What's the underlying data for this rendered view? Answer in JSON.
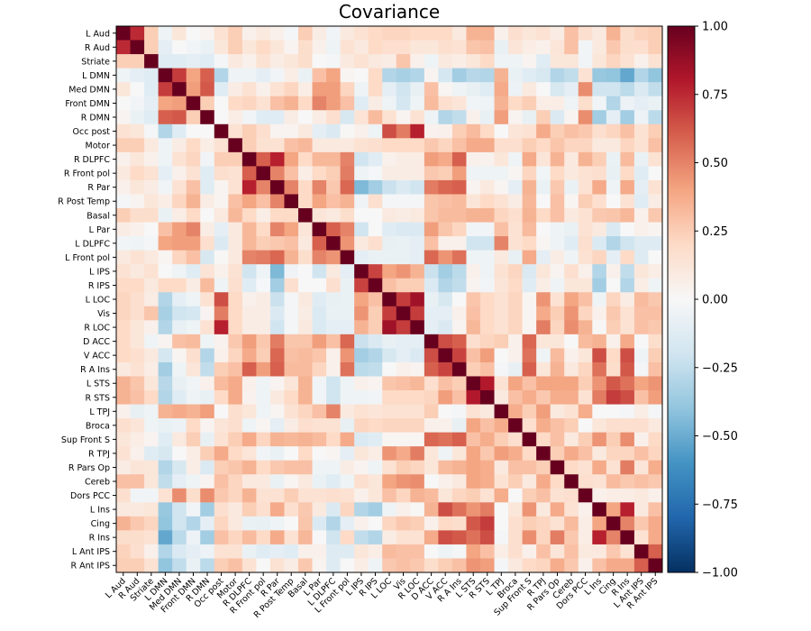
{
  "chart_data": {
    "type": "heatmap",
    "title": "Covariance",
    "colormap": "RdBu_r",
    "color_range": [
      -1.0,
      1.0
    ],
    "colorbar_ticks": [
      "1.00",
      "0.75",
      "0.50",
      "0.25",
      "0.00",
      "−0.25",
      "−0.50",
      "−0.75",
      "−1.00"
    ],
    "colorbar_tick_values": [
      1.0,
      0.75,
      0.5,
      0.25,
      0.0,
      -0.25,
      -0.5,
      -0.75,
      -1.0
    ],
    "labels": [
      "L Aud",
      "R Aud",
      "Striate",
      "L DMN",
      "Med DMN",
      "Front DMN",
      "R DMN",
      "Occ post",
      "Motor",
      "R DLPFC",
      "R Front pol",
      "R Par",
      "R Post Temp",
      "Basal",
      "L Par",
      "L DLPFC",
      "L Front pol",
      "L IPS",
      "R IPS",
      "L LOC",
      "Vis",
      "R LOC",
      "D ACC",
      "V ACC",
      "R A Ins",
      "L STS",
      "R STS",
      "L TPJ",
      "Broca",
      "Sup Front S",
      "R TPJ",
      "R Pars Op",
      "Cereb",
      "Dors PCC",
      "L Ins",
      "Cing",
      "R Ins",
      "L Ant IPS",
      "R Ant IPS"
    ],
    "symmetric": true,
    "values_upper_triangle": [
      [
        1,
        0.75,
        0.25,
        -0.05,
        0.12,
        0,
        0.03,
        0.15,
        0.25,
        0.05,
        0.1,
        0.05,
        -0.02,
        0.25,
        0.08,
        -0.03,
        0.1,
        0.15,
        0.2,
        0.22,
        0.22,
        0.2,
        0.2,
        0.2,
        0.1,
        0.35,
        0.35,
        0.05,
        0.17,
        0.12,
        0.15,
        0.08,
        0.3,
        0.17,
        0.1,
        0.35,
        0.18,
        0.23,
        0.25
      ],
      [
        1,
        0.25,
        -0.1,
        0,
        -0.03,
        -0.07,
        0.12,
        0.25,
        0.12,
        0.2,
        0.12,
        0.03,
        0.18,
        0.05,
        -0.05,
        0.15,
        0.1,
        0.2,
        0.17,
        0.17,
        0.12,
        0.12,
        0.17,
        0.15,
        0.28,
        0.3,
        -0.08,
        0.13,
        0.07,
        0.05,
        0.13,
        0.3,
        -0.03,
        0.1,
        0.27,
        0.18,
        0.17,
        0.25
      ],
      [
        1,
        -0.12,
        -0.12,
        -0.1,
        -0.12,
        -0.02,
        0.1,
        0.05,
        0.15,
        0.08,
        0.12,
        0.18,
        0,
        -0.02,
        0.1,
        0.15,
        0.1,
        0.08,
        0.28,
        0.05,
        -0.05,
        0.1,
        0.07,
        0.12,
        0.2,
        -0.05,
        -0.05,
        0.03,
        -0.12,
        0.12,
        0.12,
        -0.03,
        0.12,
        0.22,
        0.15,
        0.05,
        0.15
      ],
      [
        1,
        0.7,
        0.4,
        0.6,
        -0.3,
        -0.05,
        -0.05,
        -0.1,
        -0.03,
        0.07,
        -0.07,
        0.3,
        0.4,
        0.02,
        0,
        0.2,
        -0.3,
        -0.33,
        -0.3,
        0.03,
        -0.18,
        -0.35,
        -0.28,
        -0.3,
        0.35,
        -0.07,
        -0.12,
        -0.17,
        -0.3,
        -0.25,
        0.15,
        -0.38,
        -0.4,
        -0.52,
        -0.3,
        -0.4
      ],
      [
        1,
        0.42,
        0.62,
        -0.12,
        0.08,
        0.15,
        0.05,
        0.15,
        0.22,
        0.07,
        0.42,
        0.42,
        0.22,
        -0.05,
        0.2,
        -0.1,
        -0.2,
        -0.08,
        0.3,
        0.02,
        -0.05,
        -0.08,
        -0.12,
        0.38,
        -0.06,
        0.1,
        0,
        -0.17,
        -0.1,
        0.47,
        -0.2,
        -0.2,
        -0.27,
        -0.15,
        -0.25
      ],
      [
        1,
        0.25,
        0,
        0.2,
        0.22,
        0.15,
        0.3,
        0.35,
        0.2,
        0.5,
        0.42,
        0.3,
        -0.12,
        0.08,
        -0.05,
        -0.18,
        -0.05,
        0.32,
        0.17,
        0.13,
        -0.03,
        -0.05,
        0.35,
        0.2,
        0.25,
        0.07,
        0.07,
        -0.05,
        0.18,
        -0.03,
        -0.3,
        -0.06,
        -0.1,
        -0.07
      ],
      [
        1,
        0,
        0.07,
        -0.03,
        -0.12,
        -0.12,
        0.08,
        0,
        0.08,
        0.17,
        -0.17,
        0.14,
        0.32,
        0.15,
        0.03,
        0.15,
        -0.05,
        -0.3,
        -0.25,
        0.05,
        -0.08,
        0.42,
        0.03,
        -0.08,
        0.25,
        -0.15,
        0.03,
        0.47,
        -0.35,
        -0.1,
        -0.35,
        -0.06,
        -0.27
      ],
      [
        1,
        0.15,
        0.25,
        0.17,
        0.03,
        0.03,
        0.1,
        -0.1,
        -0.15,
        0.01,
        0.05,
        -0.05,
        0.65,
        0.52,
        0.78,
        0.04,
        0.05,
        0.25,
        0.32,
        0.2,
        0,
        0.13,
        0.15,
        0.38,
        0.25,
        0.3,
        0.27,
        0.17,
        0.22,
        0.3,
        0.15,
        0.25
      ],
      [
        1,
        0.25,
        0.15,
        0.15,
        0.3,
        0.33,
        0.1,
        0.1,
        0.1,
        0.15,
        0.17,
        0.2,
        0.2,
        0.2,
        0.27,
        0.22,
        0.3,
        0.38,
        0.38,
        0.17,
        0.17,
        0.25,
        0.2,
        0.28,
        0.22,
        0.22,
        0.1,
        0.1,
        0.22,
        0.15,
        0.3
      ],
      [
        1,
        0.6,
        0.78,
        0.4,
        0.2,
        0.33,
        0.33,
        0.5,
        -0.2,
        -0.12,
        0.05,
        0.08,
        0.08,
        0.42,
        0.38,
        0.6,
        0.05,
        0.04,
        0.12,
        -0.05,
        0.38,
        0.13,
        0.35,
        0.1,
        0.35,
        0.25,
        -0.07,
        0.32,
        -0.07,
        0.15
      ],
      [
        1,
        0.5,
        0.3,
        0.07,
        0.2,
        0.25,
        0.52,
        -0.05,
        -0.01,
        0.08,
        0.08,
        0.08,
        0.27,
        0.25,
        0.42,
        -0.05,
        -0.05,
        -0.05,
        0.02,
        0.22,
        -0.03,
        0.2,
        0.1,
        0.15,
        0.17,
        -0.08,
        0.2,
        -0.12,
        0
      ],
      [
        1,
        0.5,
        0.2,
        0.5,
        0.27,
        0.58,
        -0.45,
        -0.35,
        -0.22,
        -0.15,
        -0.2,
        0.52,
        0.58,
        0.6,
        0.03,
        0.1,
        0.02,
        -0.1,
        0.35,
        -0.07,
        0.27,
        -0.07,
        0.15,
        0.38,
        -0.05,
        0.38,
        -0.1,
        0.15
      ],
      [
        1,
        0.2,
        0.4,
        0.3,
        0.35,
        -0.04,
        0.17,
        -0.02,
        -0.02,
        -0.02,
        0.28,
        0.3,
        0.32,
        0.13,
        0.2,
        0.15,
        0.08,
        0.33,
        0,
        0.3,
        0.02,
        0.25,
        0.17,
        0,
        0.15,
        -0.12,
        0.08
      ],
      [
        1,
        0.13,
        0.1,
        0.18,
        0,
        0,
        0.1,
        0.08,
        0.1,
        0.28,
        0.32,
        0.32,
        0.35,
        0.35,
        0.22,
        0.17,
        0.35,
        0.2,
        0.3,
        0.1,
        0.15,
        0.27,
        0.28,
        0.33,
        0.05,
        0.27
      ],
      [
        1,
        0.6,
        0.5,
        -0.2,
        0,
        -0.12,
        -0.15,
        -0.15,
        0.42,
        0.28,
        0.22,
        -0.03,
        -0.03,
        0.3,
        0.15,
        0.32,
        0,
        -0.05,
        -0.07,
        0.15,
        0.1,
        -0.15,
        0,
        0.05,
        0.03
      ],
      [
        1,
        0.45,
        0.1,
        0.17,
        -0.08,
        -0.07,
        -0.1,
        0.3,
        0.05,
        0.05,
        -0.2,
        -0.2,
        0.5,
        0.15,
        0.2,
        0.02,
        -0.05,
        -0.12,
        0.17,
        -0.15,
        -0.3,
        -0.2,
        -0.13,
        -0.13
      ],
      [
        1,
        -0.1,
        -0.07,
        -0.07,
        -0.07,
        -0.1,
        0.58,
        0.45,
        0.55,
        -0.05,
        -0.05,
        0.1,
        -0.08,
        0.38,
        -0.1,
        0.08,
        -0.05,
        0.15,
        0.22,
        -0.1,
        0.2,
        -0.13,
        0
      ],
      [
        1,
        0.68,
        0.4,
        0.45,
        0.35,
        -0.22,
        -0.35,
        -0.27,
        0.05,
        -0.05,
        0.15,
        0.22,
        -0.15,
        0.12,
        0.03,
        0.17,
        0.05,
        -0.3,
        0.05,
        -0.25,
        0.12,
        0.07
      ],
      [
        1,
        0.3,
        0.25,
        0.25,
        -0.15,
        -0.3,
        -0.25,
        0.03,
        -0.03,
        0.13,
        0.2,
        -0.12,
        0.07,
        -0.05,
        0.12,
        0.12,
        -0.35,
        0,
        -0.3,
        0.07,
        -0.05
      ],
      [
        1,
        0.7,
        0.85,
        -0.08,
        -0.17,
        0,
        0.28,
        0.2,
        0.15,
        0.22,
        0.02,
        0.45,
        0.15,
        0.4,
        0.3,
        -0.05,
        0.22,
        0.08,
        0.32,
        0.27
      ],
      [
        1,
        0.7,
        -0.1,
        -0.1,
        0.05,
        0.3,
        0.2,
        0.15,
        0.22,
        0.02,
        0.38,
        0.25,
        0.45,
        0.22,
        0.05,
        0.27,
        0.15,
        0.3,
        0.3
      ],
      [
        1,
        -0.1,
        -0.15,
        0.03,
        0.33,
        0.2,
        0.15,
        0.22,
        0.02,
        0.52,
        0.22,
        0.47,
        0.35,
        0.01,
        0.25,
        0.15,
        0.3,
        0.27
      ],
      [
        1,
        0.65,
        0.6,
        0.17,
        0.22,
        0.25,
        0.05,
        0.58,
        0.12,
        0.12,
        0,
        0.32,
        0.35,
        0.05,
        0.38,
        0,
        0.18
      ],
      [
        1,
        0.68,
        0.3,
        0.42,
        0,
        0.05,
        0.55,
        -0.05,
        0.32,
        0.05,
        0.12,
        0.65,
        0.2,
        0.65,
        -0.05,
        0.25
      ],
      [
        1,
        0.25,
        0.3,
        -0.02,
        -0.08,
        0.6,
        0.12,
        0.35,
        0.1,
        0.22,
        0.55,
        0.18,
        0.62,
        -0.02,
        0.3
      ],
      [
        1,
        0.8,
        0.15,
        0.4,
        0.3,
        0.4,
        0.4,
        0.4,
        0.25,
        0.45,
        0.62,
        0.55,
        0.4,
        0.45
      ],
      [
        1,
        0.1,
        0.3,
        0.37,
        0.27,
        0.37,
        0.37,
        0.15,
        0.52,
        0.7,
        0.65,
        0.3,
        0.42
      ],
      [
        1,
        0.37,
        0.25,
        0.42,
        0.1,
        0.15,
        0.37,
        0,
        0,
        -0.02,
        0.07,
        -0.02
      ],
      [
        1,
        0.17,
        0.37,
        0.3,
        0.25,
        0,
        0.12,
        0.17,
        0.17,
        0.17,
        0.1
      ],
      [
        1,
        0.2,
        0.3,
        0.1,
        0.25,
        0.45,
        0.25,
        0.47,
        0.05,
        0.2
      ],
      [
        1,
        0.25,
        0.38,
        0.3,
        0.1,
        0.22,
        0.22,
        0.3,
        0.22
      ],
      [
        1,
        0.2,
        0.15,
        0.38,
        0.15,
        0.52,
        0.13,
        0.37
      ],
      [
        1,
        0.17,
        0.15,
        0.32,
        0.27,
        0.3,
        0.27
      ],
      [
        1,
        0.05,
        0.07,
        0.07,
        0.1,
        0.05
      ],
      [
        1,
        0.4,
        0.78,
        0.1,
        0.3
      ],
      [
        1,
        0.5,
        0.27,
        0.38
      ],
      [
        1,
        0.15,
        0.38
      ],
      [
        1,
        0.6
      ],
      [
        1
      ]
    ],
    "legend": "colorbar-right",
    "grid": false
  }
}
